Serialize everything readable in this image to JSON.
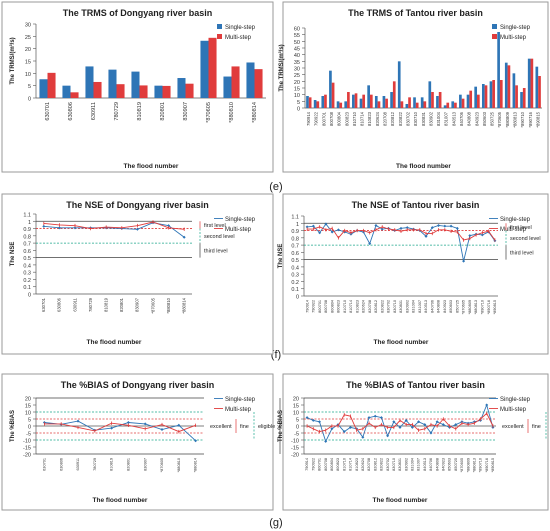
{
  "labels": {
    "row_e": "(e)",
    "row_f": "(f)",
    "row_g": "(g)"
  },
  "chart_data": [
    {
      "id": "trms_dongyang",
      "type": "bar",
      "title": "The TRMS of Dongyang river basin",
      "xlabel": "The flood number",
      "ylabel": "The TRMS/(m³/s)",
      "ylim": [
        0,
        30
      ],
      "yticks": [
        0,
        5,
        10,
        15,
        20,
        25,
        30
      ],
      "legend": "right",
      "categories": [
        "630701",
        "630806",
        "630911",
        "780729",
        "810819",
        "820801",
        "830907",
        "*870605",
        "*880810",
        "*880814"
      ],
      "series": [
        {
          "name": "Single-step",
          "color": "#2e75b6",
          "values": [
            7.6,
            5.0,
            12.8,
            11.5,
            10.7,
            5.0,
            8.1,
            23.2,
            8.7,
            14.4
          ]
        },
        {
          "name": "Multi-step",
          "color": "#e03c3c",
          "values": [
            10.2,
            2.3,
            6.5,
            5.6,
            5.1,
            4.9,
            5.8,
            24.4,
            12.8,
            11.7
          ]
        }
      ]
    },
    {
      "id": "trms_tantou",
      "type": "bar",
      "title": "The TRMS of Tantou river basin",
      "xlabel": "The flood number",
      "ylabel": "The TRMS/(m³/s)",
      "ylim": [
        0,
        60
      ],
      "yticks": [
        0,
        5,
        10,
        15,
        20,
        25,
        30,
        35,
        40,
        45,
        50,
        55,
        60
      ],
      "legend": "right",
      "categories": [
        "790914",
        "790922",
        "800701",
        "800708",
        "800804",
        "800823",
        "810710",
        "810714",
        "810823",
        "820624",
        "820708",
        "820812",
        "820822",
        "830702",
        "830710",
        "830831",
        "830902",
        "831004",
        "831007",
        "840513",
        "840706",
        "840808",
        "840923",
        "850603",
        "850725",
        "*870605",
        "*880809",
        "*880813",
        "*890710",
        "*890716",
        "*890815"
      ],
      "series": [
        {
          "name": "Single-step",
          "color": "#2e75b6",
          "values": [
            9,
            6,
            9,
            28,
            5,
            5,
            10,
            7,
            17,
            9,
            9,
            12,
            35,
            3,
            8,
            8,
            20,
            9,
            2,
            5,
            10,
            10,
            16,
            18,
            20,
            57,
            34,
            26,
            12,
            37,
            31
          ]
        },
        {
          "name": "Multi-step",
          "color": "#e03c3c",
          "values": [
            8,
            5,
            10,
            19,
            4,
            12,
            11,
            10,
            10,
            5,
            7,
            20,
            5,
            8,
            4,
            5,
            12,
            12,
            4,
            4,
            7,
            13,
            10,
            17,
            21,
            21,
            32,
            17,
            15,
            37,
            24
          ]
        }
      ]
    },
    {
      "id": "nse_dongyang",
      "type": "line",
      "title": "The NSE of Dongyang river basin",
      "xlabel": "The flood number",
      "ylabel": "The NSE",
      "ylim": [
        0,
        1.1
      ],
      "yticks": [
        0,
        0.1,
        0.2,
        0.3,
        0.4,
        0.5,
        0.6,
        0.7,
        0.8,
        0.9,
        1,
        1.1
      ],
      "legend": "right",
      "categories": [
        "630701",
        "630806",
        "630911",
        "780729",
        "810819",
        "820801",
        "830907",
        "*870605",
        "*880810",
        "*880814"
      ],
      "series": [
        {
          "name": "Single-step",
          "color": "#2e75b6",
          "values": [
            0.93,
            0.91,
            0.91,
            0.91,
            0.91,
            0.9,
            0.89,
            0.98,
            0.94,
            0.78
          ]
        },
        {
          "name": "Multi-step",
          "color": "#e03c3c",
          "values": [
            0.97,
            0.95,
            0.94,
            0.9,
            0.92,
            0.91,
            0.94,
            0.99,
            0.91,
            0.89
          ]
        }
      ],
      "reference_lines": [
        {
          "value": 1.0,
          "color": "#404040",
          "style": "solid"
        },
        {
          "value": 0.9,
          "color": "#e03c3c",
          "style": "dashed"
        },
        {
          "value": 0.7,
          "color": "#1aa68a",
          "style": "dashed"
        },
        {
          "value": 0.5,
          "color": "#404040",
          "style": "solid"
        }
      ],
      "annotations": [
        "first level",
        "second level",
        "third level"
      ]
    },
    {
      "id": "nse_tantou",
      "type": "line",
      "title": "The NSE of Tantou river basin",
      "xlabel": "The flood number",
      "ylabel": "The NSE",
      "ylim": [
        0,
        1.1
      ],
      "yticks": [
        0,
        0.1,
        0.2,
        0.3,
        0.4,
        0.5,
        0.6,
        0.7,
        0.8,
        0.9,
        1,
        1.1
      ],
      "legend": "right",
      "categories": [
        "790914",
        "790922",
        "800701",
        "800708",
        "800804",
        "800823",
        "810710",
        "810714",
        "810823",
        "820624",
        "820708",
        "820812",
        "820822",
        "830702",
        "830710",
        "830831",
        "830902",
        "831004",
        "831007",
        "840513",
        "840706",
        "840808",
        "840923",
        "850603",
        "850725",
        "*870605",
        "*880809",
        "*880813",
        "*890710",
        "*890716",
        "*890815"
      ],
      "series": [
        {
          "name": "Single-step",
          "color": "#2e75b6",
          "values": [
            0.95,
            0.96,
            0.87,
            0.99,
            0.88,
            0.91,
            0.88,
            0.85,
            0.9,
            0.88,
            0.72,
            0.97,
            0.92,
            0.93,
            0.9,
            0.93,
            0.94,
            0.92,
            0.9,
            0.82,
            0.94,
            0.97,
            0.96,
            0.96,
            0.93,
            0.48,
            0.83,
            0.85,
            0.84,
            0.88,
            0.76
          ]
        },
        {
          "name": "Multi-step",
          "color": "#e03c3c",
          "values": [
            0.92,
            0.92,
            0.95,
            0.91,
            0.93,
            0.8,
            0.9,
            0.87,
            0.9,
            0.9,
            0.87,
            0.91,
            0.95,
            0.92,
            0.91,
            0.89,
            0.91,
            0.91,
            0.91,
            0.86,
            0.86,
            0.91,
            0.91,
            0.89,
            0.88,
            0.77,
            0.79,
            0.84,
            0.87,
            0.89,
            0.77
          ]
        }
      ],
      "reference_lines": [
        {
          "value": 1.0,
          "color": "#404040",
          "style": "solid"
        },
        {
          "value": 0.9,
          "color": "#e03c3c",
          "style": "dashed"
        },
        {
          "value": 0.7,
          "color": "#1aa68a",
          "style": "dashed"
        },
        {
          "value": 0.5,
          "color": "#404040",
          "style": "solid"
        }
      ],
      "annotations": [
        "first level",
        "second level",
        "third level"
      ]
    },
    {
      "id": "bias_dongyang",
      "type": "line",
      "title": "The %BIAS of Dongyang river basin",
      "xlabel": "The flood number",
      "ylabel": "The %BIAS",
      "ylim": [
        -20,
        20
      ],
      "yticks": [
        -20,
        -15,
        -10,
        -5,
        0,
        5,
        10,
        15,
        20
      ],
      "legend": "right",
      "categories": [
        "630701",
        "630806",
        "630911",
        "780729",
        "810819",
        "820801",
        "830907",
        "*870605",
        "*880810",
        "*880814"
      ],
      "series": [
        {
          "name": "Single-step",
          "color": "#2e75b6",
          "values": [
            2.5,
            1.2,
            3.5,
            -3.0,
            -1.5,
            2.5,
            1.5,
            -2.5,
            0.5,
            -10.5
          ]
        },
        {
          "name": "Multi-step",
          "color": "#e03c3c",
          "values": [
            1.5,
            1.5,
            -1.0,
            -3.5,
            2.0,
            0.5,
            -2.0,
            1.0,
            -4.0,
            0.5
          ]
        }
      ],
      "reference_lines": [
        {
          "value": 20,
          "color": "#404040",
          "style": "solid"
        },
        {
          "value": 10,
          "color": "#1aa68a",
          "style": "dashed"
        },
        {
          "value": 5,
          "color": "#e03c3c",
          "style": "dashed"
        },
        {
          "value": -5,
          "color": "#e03c3c",
          "style": "dashed"
        },
        {
          "value": -10,
          "color": "#1aa68a",
          "style": "dashed"
        },
        {
          "value": -20,
          "color": "#404040",
          "style": "solid"
        }
      ],
      "annotations": [
        "excellent",
        "fine",
        "eligible"
      ]
    },
    {
      "id": "bias_tantou",
      "type": "line",
      "title": "The %BIAS of Tantou river basin",
      "xlabel": "The flood number",
      "ylabel": "The %BIAS",
      "ylim": [
        -20,
        20
      ],
      "yticks": [
        -20,
        -15,
        -10,
        -5,
        0,
        5,
        10,
        15,
        20
      ],
      "legend": "right",
      "categories": [
        "790914",
        "790922",
        "800701",
        "800708",
        "800804",
        "800823",
        "810710",
        "810714",
        "810823",
        "820624",
        "820708",
        "820812",
        "820822",
        "830702",
        "830710",
        "830831",
        "830902",
        "831004",
        "831007",
        "840513",
        "840706",
        "840808",
        "840923",
        "850603",
        "850725",
        "*870605",
        "*880809",
        "*880813",
        "*890710",
        "*890716",
        "*890815"
      ],
      "series": [
        {
          "name": "Single-step",
          "color": "#2e75b6",
          "values": [
            6,
            4,
            3,
            -11,
            -2,
            1,
            -4,
            -1,
            -2,
            -8,
            6,
            7,
            6,
            -7,
            3,
            -1,
            4,
            -1,
            3,
            1,
            -5,
            3,
            1,
            -1,
            1,
            3,
            2,
            3,
            4,
            15,
            -1
          ]
        },
        {
          "name": "Multi-step",
          "color": "#e03c3c",
          "values": [
            0,
            -2,
            -4,
            -3,
            0,
            0,
            8,
            7,
            -3,
            -2,
            2,
            -1,
            1,
            -1,
            -1,
            4,
            1,
            1,
            -3,
            -2,
            1,
            0,
            5,
            0,
            -2,
            2,
            1,
            2,
            5,
            9,
            0
          ]
        }
      ],
      "reference_lines": [
        {
          "value": 20,
          "color": "#404040",
          "style": "solid"
        },
        {
          "value": 10,
          "color": "#1aa68a",
          "style": "dashed"
        },
        {
          "value": 5,
          "color": "#e03c3c",
          "style": "dashed"
        },
        {
          "value": -5,
          "color": "#e03c3c",
          "style": "dashed"
        },
        {
          "value": -10,
          "color": "#1aa68a",
          "style": "dashed"
        },
        {
          "value": -20,
          "color": "#404040",
          "style": "solid"
        }
      ],
      "annotations": [
        "excellent",
        "fine",
        "eligible"
      ]
    }
  ]
}
